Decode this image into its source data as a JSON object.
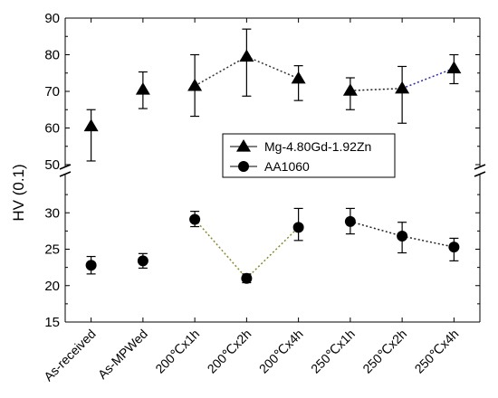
{
  "chart_data": {
    "type": "scatter",
    "ylabel": "HV (0.1)",
    "categories": [
      "As-received",
      "As-MPWed",
      "200℃x1h",
      "200℃x2h",
      "200℃x4h",
      "250℃x1h",
      "250℃x2h",
      "250℃x4h"
    ],
    "y_axis": {
      "upper_segment": {
        "range": [
          50,
          90
        ],
        "ticks": [
          50,
          60,
          70,
          80,
          90
        ]
      },
      "lower_segment": {
        "range": [
          15,
          35
        ],
        "ticks": [
          15,
          20,
          25,
          30
        ]
      },
      "break_between": [
        35,
        50
      ]
    },
    "legend": {
      "placement": "center-right",
      "entries": [
        "Mg-4.80Gd-1.92Zn",
        "AA1060"
      ]
    },
    "series": [
      {
        "name": "Mg-4.80Gd-1.92Zn",
        "marker": "triangle",
        "values": [
          60.5,
          70.5,
          71.5,
          79.5,
          73.5,
          70.2,
          70.8,
          76.3
        ],
        "err_low": [
          9.5,
          5.2,
          8.3,
          10.8,
          6.0,
          5.2,
          9.5,
          4.2
        ],
        "err_high": [
          4.5,
          4.8,
          8.5,
          7.5,
          3.5,
          3.5,
          6.0,
          3.7
        ]
      },
      {
        "name": "AA1060",
        "marker": "circle",
        "values": [
          22.8,
          23.4,
          29.1,
          21.0,
          28.0,
          28.8,
          26.8,
          25.3
        ],
        "err_low": [
          1.2,
          1.0,
          1.0,
          0.6,
          1.8,
          1.7,
          2.3,
          1.9
        ],
        "err_high": [
          1.2,
          1.0,
          1.1,
          0.6,
          2.6,
          1.8,
          1.9,
          1.2
        ]
      }
    ],
    "connectors": [
      {
        "series": 0,
        "from": 2,
        "to": 3,
        "color": "#333333"
      },
      {
        "series": 0,
        "from": 3,
        "to": 4,
        "color": "#333333"
      },
      {
        "series": 0,
        "from": 5,
        "to": 6,
        "color": "#222222"
      },
      {
        "series": 0,
        "from": 6,
        "to": 7,
        "color": "#2b2bb0"
      },
      {
        "series": 1,
        "from": 2,
        "to": 3,
        "color": "#8a8a2a"
      },
      {
        "series": 1,
        "from": 3,
        "to": 4,
        "color": "#8a8a2a"
      },
      {
        "series": 1,
        "from": 5,
        "to": 6,
        "color": "#222222"
      },
      {
        "series": 1,
        "from": 6,
        "to": 7,
        "color": "#222222"
      }
    ]
  }
}
